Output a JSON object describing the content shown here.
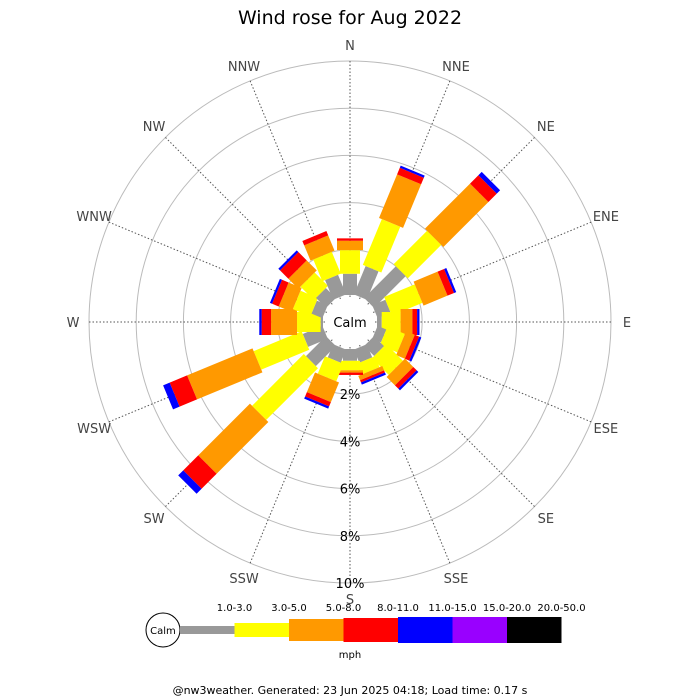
{
  "chart_data": {
    "type": "wind-rose",
    "title": "Wind rose for Aug 2022",
    "directions": [
      "N",
      "NNE",
      "NE",
      "ENE",
      "E",
      "ESE",
      "SE",
      "SSE",
      "S",
      "SSW",
      "SW",
      "WSW",
      "W",
      "WNW",
      "NW",
      "NNW"
    ],
    "ring_values": [
      2,
      4,
      6,
      8,
      10
    ],
    "ring_labels": [
      "2%",
      "4%",
      "6%",
      "8%",
      "10%"
    ],
    "radial_unit": "%",
    "center_label": "Calm",
    "speed_unit": "mph",
    "speed_bins": [
      {
        "label": "1.0-3.0",
        "color": "#999999"
      },
      {
        "label": "3.0-5.0",
        "color": "#ffff00"
      },
      {
        "label": "5.0-8.0",
        "color": "#ff9900"
      },
      {
        "label": "8.0-11.0",
        "color": "#ff0000"
      },
      {
        "label": "11.0-15.0",
        "color": "#0000ff"
      },
      {
        "label": "15.0-20.0",
        "color": "#9900ff"
      },
      {
        "label": "20.0-50.0",
        "color": "#000000"
      }
    ],
    "series": [
      {
        "direction": "N",
        "values": [
          0.9,
          1.0,
          0.4,
          0.1,
          0.0,
          0.0,
          0.0
        ]
      },
      {
        "direction": "NNE",
        "values": [
          1.3,
          2.1,
          2.0,
          0.3,
          0.1,
          0.0,
          0.0
        ]
      },
      {
        "direction": "NE",
        "values": [
          1.9,
          2.0,
          2.7,
          0.5,
          0.2,
          0.0,
          0.0
        ]
      },
      {
        "direction": "ENE",
        "values": [
          0.6,
          1.4,
          1.1,
          0.3,
          0.1,
          0.0,
          0.0
        ]
      },
      {
        "direction": "E",
        "values": [
          0.2,
          0.8,
          0.5,
          0.2,
          0.1,
          0.0,
          0.0
        ]
      },
      {
        "direction": "ESE",
        "values": [
          0.4,
          0.8,
          0.4,
          0.2,
          0.1,
          0.0,
          0.0
        ]
      },
      {
        "direction": "SE",
        "values": [
          0.6,
          1.0,
          0.5,
          0.2,
          0.1,
          0.0,
          0.0
        ]
      },
      {
        "direction": "SSE",
        "values": [
          0.6,
          0.5,
          0.2,
          0.1,
          0.1,
          0.0,
          0.0
        ]
      },
      {
        "direction": "S",
        "values": [
          0.5,
          0.4,
          0.1,
          0.1,
          0.0,
          0.0,
          0.0
        ]
      },
      {
        "direction": "SSW",
        "values": [
          0.6,
          0.8,
          0.9,
          0.2,
          0.1,
          0.0,
          0.0
        ]
      },
      {
        "direction": "SW",
        "values": [
          1.2,
          3.1,
          3.1,
          0.9,
          0.3,
          0.0,
          0.0
        ]
      },
      {
        "direction": "WSW",
        "values": [
          0.9,
          2.2,
          3.0,
          0.8,
          0.3,
          0.0,
          0.0
        ]
      },
      {
        "direction": "W",
        "values": [
          0.1,
          1.0,
          1.1,
          0.4,
          0.1,
          0.0,
          0.0
        ]
      },
      {
        "direction": "WNW",
        "values": [
          0.5,
          0.8,
          0.6,
          0.3,
          0.1,
          0.0,
          0.0
        ]
      },
      {
        "direction": "NW",
        "values": [
          0.6,
          0.8,
          0.6,
          0.5,
          0.1,
          0.0,
          0.0
        ]
      },
      {
        "direction": "NNW",
        "values": [
          0.9,
          1.0,
          0.7,
          0.2,
          0.0,
          0.0,
          0.0
        ]
      }
    ],
    "grid": true
  },
  "footer": "@nw3weather. Generated: 23 Jun 2025 04:18; Load time: 0.17 s"
}
